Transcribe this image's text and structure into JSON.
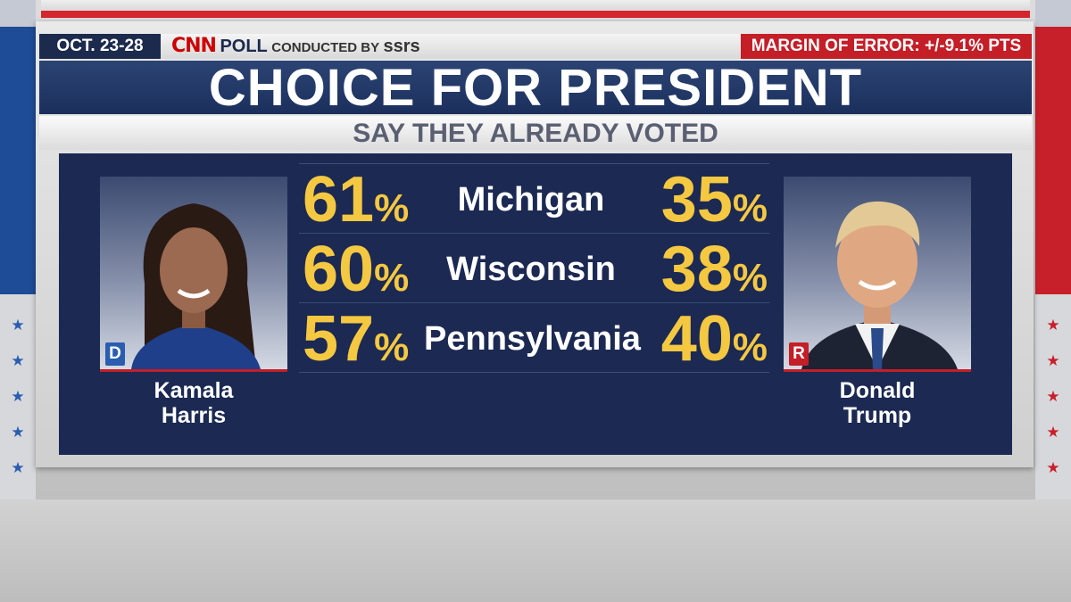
{
  "header": {
    "date": "OCT. 23-28",
    "logo_text": "CNN",
    "poll_word": "POLL",
    "conducted_by": "CONDUCTED BY",
    "pollster": "ssrs",
    "margin_of_error": "MARGIN OF ERROR: +/-9.1% PTS"
  },
  "title": "CHOICE FOR PRESIDENT",
  "subtitle": "SAY THEY ALREADY VOTED",
  "candidates": {
    "left": {
      "first_name": "Kamala",
      "last_name": "Harris",
      "party": "D",
      "party_color": "#2a5db0"
    },
    "right": {
      "first_name": "Donald",
      "last_name": "Trump",
      "party": "R",
      "party_color": "#c41e27"
    }
  },
  "results": [
    {
      "state": "Michigan",
      "left": "61",
      "right": "35"
    },
    {
      "state": "Wisconsin",
      "left": "60",
      "right": "38"
    },
    {
      "state": "Pennsylvania",
      "left": "57",
      "right": "40"
    }
  ],
  "percent_symbol": "%",
  "colors": {
    "value": "#f5c842",
    "panel": "#1b2953",
    "accent_red": "#c41e27"
  }
}
